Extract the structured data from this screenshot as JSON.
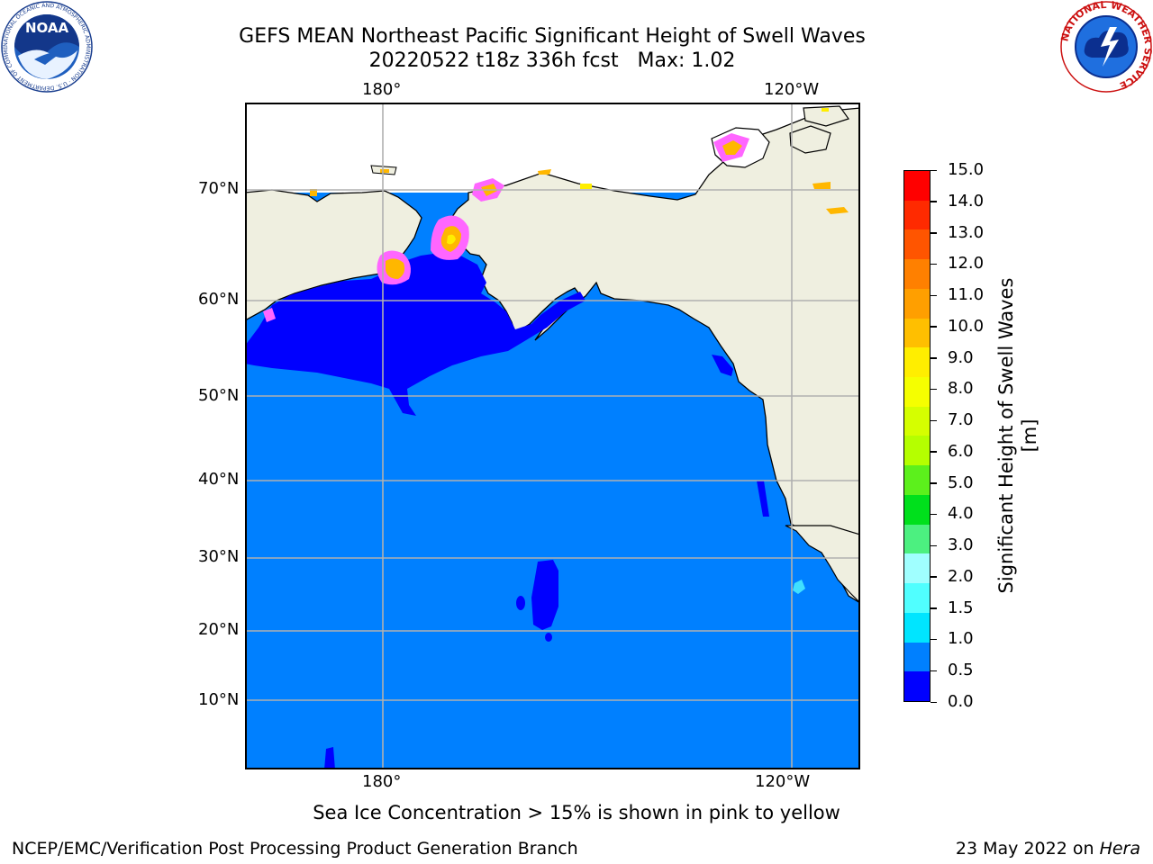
{
  "header": {
    "title_line1": "GEFS MEAN Northeast Pacific Significant Height of Swell Waves",
    "title_line2": "20220522 t18z 336h fcst   Max: 1.02"
  },
  "logos": {
    "noaa_text": "NOAA",
    "noaa_ring_text": "NATIONAL OCEANIC AND ATMOSPHERIC ADMINISTRATION · U.S. DEPARTMENT OF COMMERCE",
    "nws_ring_text": "NATIONAL WEATHER SERVICE"
  },
  "map": {
    "lon_labels_top": [
      "180°",
      "120°W"
    ],
    "lon_labels_bottom": [
      "180°",
      "120°W"
    ],
    "lat_labels": [
      "70°N",
      "60°N",
      "50°N",
      "40°N",
      "30°N",
      "20°N",
      "10°N"
    ],
    "colors": {
      "land": "#efefe0",
      "ocean_low": "#0080ff",
      "ocean_lowest": "#0000ff",
      "ice_pink": "#ff66ff",
      "ice_orange": "#ffb700",
      "ice_yellow": "#ffee00",
      "cyan_patch": "#40e0ff",
      "gridline": "#b0b0b0"
    }
  },
  "colorbar": {
    "label": "Significant Height of Swell Waves [m]",
    "ticks": [
      "15.0",
      "14.0",
      "13.0",
      "12.0",
      "11.0",
      "10.0",
      "9.0",
      "8.0",
      "7.0",
      "6.0",
      "5.0",
      "4.0",
      "3.0",
      "2.0",
      "1.5",
      "1.0",
      "0.5",
      "0.0"
    ],
    "colors_top_to_bottom": [
      "#ff0000",
      "#ff2a00",
      "#ff5500",
      "#ff8000",
      "#ff9f00",
      "#ffbf00",
      "#ffee00",
      "#f5ff00",
      "#d5ff00",
      "#b5ff00",
      "#5cf01c",
      "#00e01c",
      "#4cf080",
      "#a0ffff",
      "#50ffff",
      "#00e5ff",
      "#0080ff",
      "#0000ff"
    ]
  },
  "footer": {
    "note": "Sea Ice Concentration > 15% is shown in pink to yellow",
    "credit": "NCEP/EMC/Verification Post Processing Product Generation Branch",
    "date_prefix": "23 May 2022 on ",
    "date_host": "Hera"
  }
}
